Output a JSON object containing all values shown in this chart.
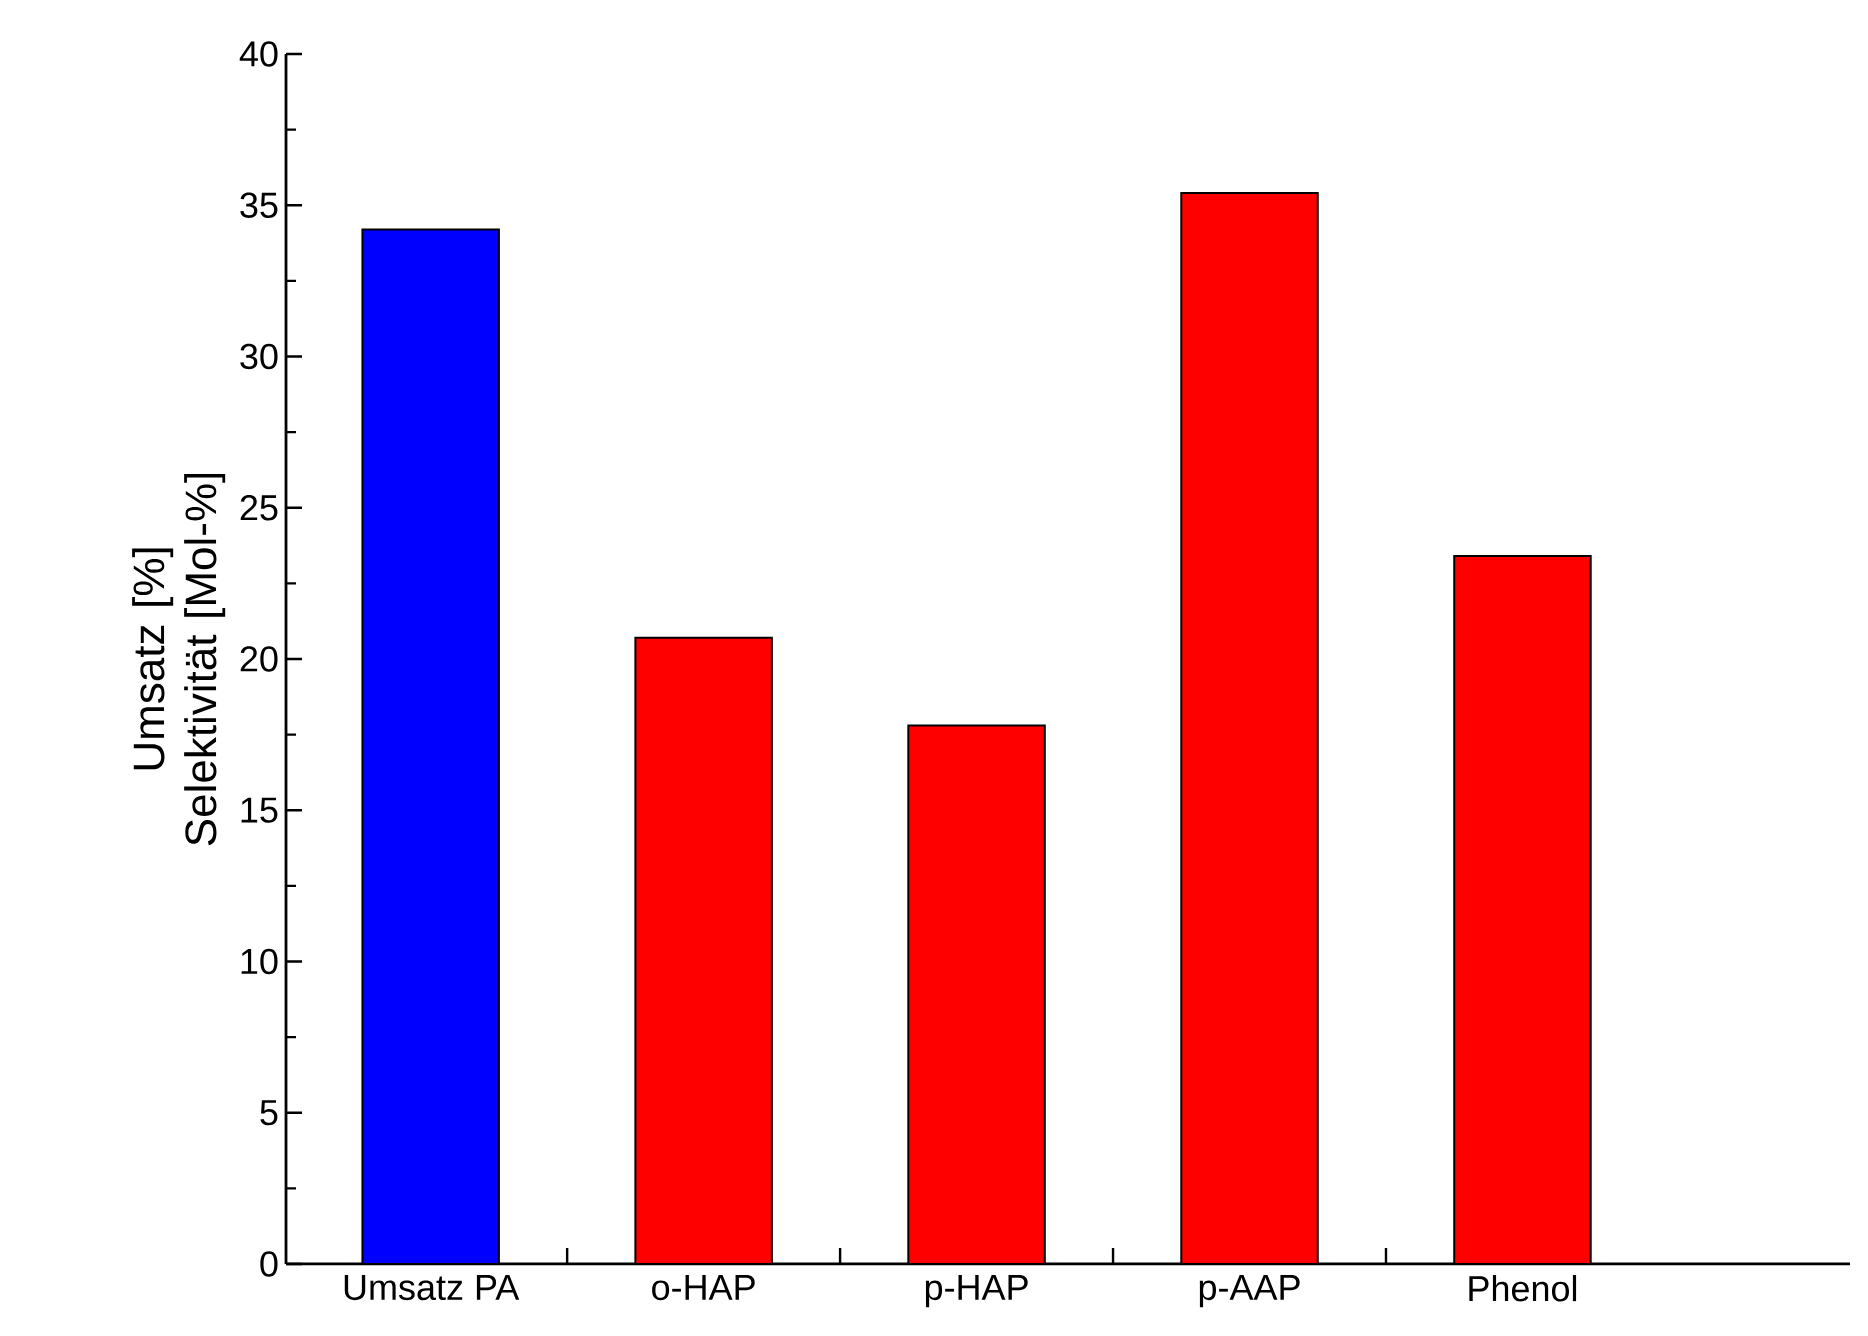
{
  "chart_data": {
    "type": "bar",
    "ylabel": "Umsatz [%] Selektivität [Mol-%]",
    "categories": [
      "Umsatz PA",
      "o-HAP",
      "p-HAP",
      "p-AAP",
      "Phenol"
    ],
    "values": [
      34.2,
      20.7,
      17.8,
      35.4,
      23.4
    ],
    "colors": [
      "#0000ff",
      "#ff0000",
      "#ff0000",
      "#ff0000",
      "#ff0000"
    ],
    "ylim": [
      0,
      40
    ],
    "yticks": [
      0,
      5,
      10,
      15,
      20,
      25,
      30,
      35,
      40
    ]
  }
}
